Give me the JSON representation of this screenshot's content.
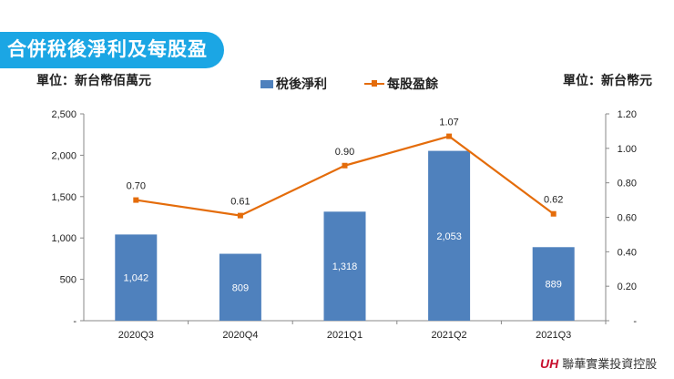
{
  "title": "合併稅後淨利及每股盈餘",
  "unit_left": "單位：新台幣佰萬元",
  "unit_right": "單位：新台幣元",
  "logo": {
    "mark": "UH",
    "text": "聯華實業投資控股",
    "color": "#c8102e"
  },
  "chart_data": {
    "type": "bar+line",
    "categories": [
      "2020Q3",
      "2020Q4",
      "2021Q1",
      "2021Q2",
      "2021Q3"
    ],
    "series": [
      {
        "name": "稅後淨利",
        "type": "bar",
        "axis": "left",
        "color": "#4f81bd",
        "values": [
          1042,
          809,
          1318,
          2053,
          889
        ],
        "labels": [
          "1,042",
          "809",
          "1,318",
          "2,053",
          "889"
        ]
      },
      {
        "name": "每股盈餘",
        "type": "line",
        "axis": "right",
        "color": "#e46c0a",
        "values": [
          0.7,
          0.61,
          0.9,
          1.07,
          0.62
        ],
        "labels": [
          "0.70",
          "0.61",
          "0.90",
          "1.07",
          "0.62"
        ]
      }
    ],
    "left_axis": {
      "ylim": [
        0,
        2500
      ],
      "ticks": [
        "-",
        "500",
        "1,000",
        "1,500",
        "2,000",
        "2,500"
      ]
    },
    "right_axis": {
      "ylim": [
        0,
        1.2
      ],
      "ticks": [
        "-",
        "0.20",
        "0.40",
        "0.60",
        "0.80",
        "1.00",
        "1.20"
      ]
    },
    "legend": "top-center",
    "grid": false
  }
}
